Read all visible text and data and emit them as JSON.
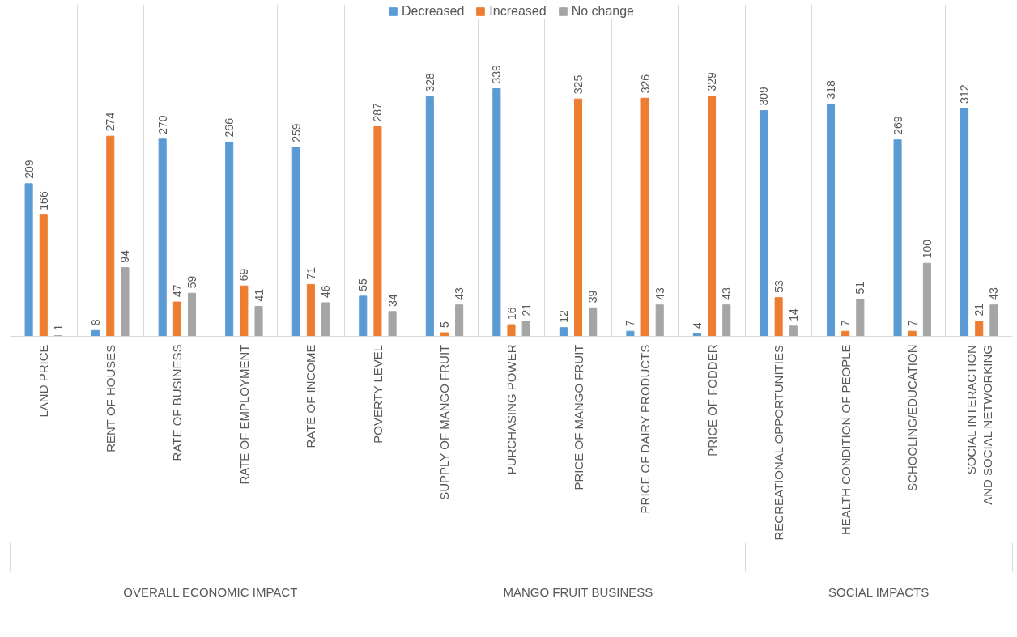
{
  "chart_data": {
    "type": "bar",
    "categories": [
      "LAND PRICE",
      "RENT OF HOUSES",
      "RATE OF BUSINESS",
      "RATE OF EMPLOYMENT",
      "RATE OF INCOME",
      "POVERTY LEVEL",
      "SUPPLY OF MANGO FRUIT",
      "PURCHASING POWER",
      "PRICE OF MANGO FRUIT",
      "PRICE OF DAIRY PRODUCTS",
      "PRICE OF FODDER",
      "RECREATIONAL OPPORTUNITIES",
      "HEALTH CONDITION OF PEOPLE",
      "SCHOOLING/EDUCATION",
      "SOCIAL INTERACTION AND SOCIAL NETWORKING"
    ],
    "series": [
      {
        "name": "Decreased",
        "color": "#5b9bd5",
        "values": [
          209,
          8,
          270,
          266,
          259,
          55,
          328,
          339,
          12,
          7,
          4,
          309,
          318,
          269,
          312
        ]
      },
      {
        "name": "Increased",
        "color": "#ed7d31",
        "values": [
          166,
          274,
          47,
          69,
          71,
          287,
          5,
          16,
          325,
          326,
          329,
          53,
          7,
          7,
          21
        ]
      },
      {
        "name": "No change",
        "color": "#a5a5a5",
        "values": [
          1,
          94,
          59,
          41,
          46,
          34,
          43,
          21,
          39,
          43,
          43,
          14,
          51,
          100,
          43
        ]
      }
    ],
    "annotations": [
      "OVERALL ECONOMIC IMPACT",
      "MANGO FRUIT BUSINESS",
      "SOCIAL IMPACTS"
    ],
    "data_labels": true,
    "legend": "top",
    "grid": "x"
  }
}
